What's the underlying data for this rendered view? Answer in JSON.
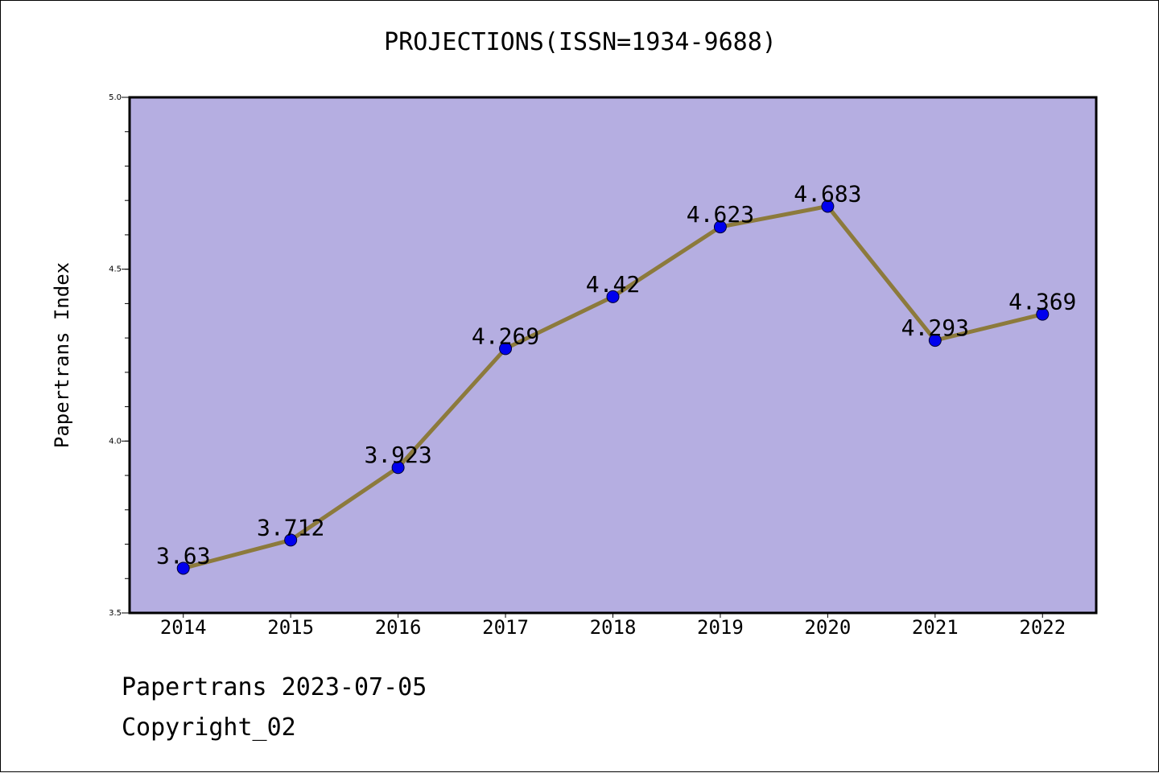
{
  "chart_data": {
    "type": "line",
    "title": "PROJECTIONS(ISSN=1934-9688)",
    "xlabel": "",
    "ylabel": "Papertrans Index",
    "x": [
      "2014",
      "2015",
      "2016",
      "2017",
      "2018",
      "2019",
      "2020",
      "2021",
      "2022"
    ],
    "series": [
      {
        "values": [
          3.63,
          3.712,
          3.923,
          4.269,
          4.42,
          4.623,
          4.683,
          4.293,
          4.369
        ],
        "labels": [
          "3.63",
          "3.712",
          "3.923",
          "4.269",
          "4.42",
          "4.623",
          "4.683",
          "4.293",
          "4.369"
        ]
      }
    ],
    "ylim": [
      3.5,
      5.0
    ],
    "yticks": [
      "3.5",
      "4.0",
      "4.5",
      "5.0"
    ],
    "grid": false,
    "colors": {
      "plot_background": "#b5aee1",
      "line": "#8c7a3c",
      "marker": "#0000ee"
    }
  },
  "footer": {
    "line1": "Papertrans 2023-07-05",
    "line2": "Copyright_02"
  }
}
